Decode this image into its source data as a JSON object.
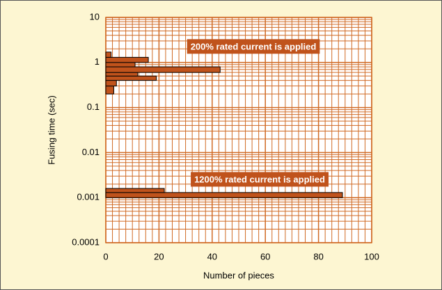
{
  "chart_data": {
    "type": "histogram",
    "orientation": "horizontal",
    "xlabel": "Number of pieces",
    "ylabel": "Fusing time (sec)",
    "xlim": [
      0,
      100
    ],
    "xticks": [
      0,
      20,
      40,
      60,
      80,
      100
    ],
    "ylim": [
      0.0001,
      10
    ],
    "yticks": [
      0.0001,
      0.001,
      0.01,
      0.1,
      1,
      10
    ],
    "yscale": "log",
    "grid": true,
    "color": "#c0531c",
    "series": [
      {
        "annotation": "200% rated current is applied",
        "bins": [
          0.2,
          0.3,
          0.4,
          0.5,
          0.6,
          0.8,
          1.0,
          1.3,
          1.7
        ],
        "values": [
          3,
          4,
          19,
          12,
          43,
          11,
          16,
          2
        ]
      },
      {
        "annotation": "1200% rated current is applied",
        "bins": [
          0.001,
          0.0013,
          0.0016
        ],
        "values": [
          89,
          22
        ]
      }
    ]
  }
}
